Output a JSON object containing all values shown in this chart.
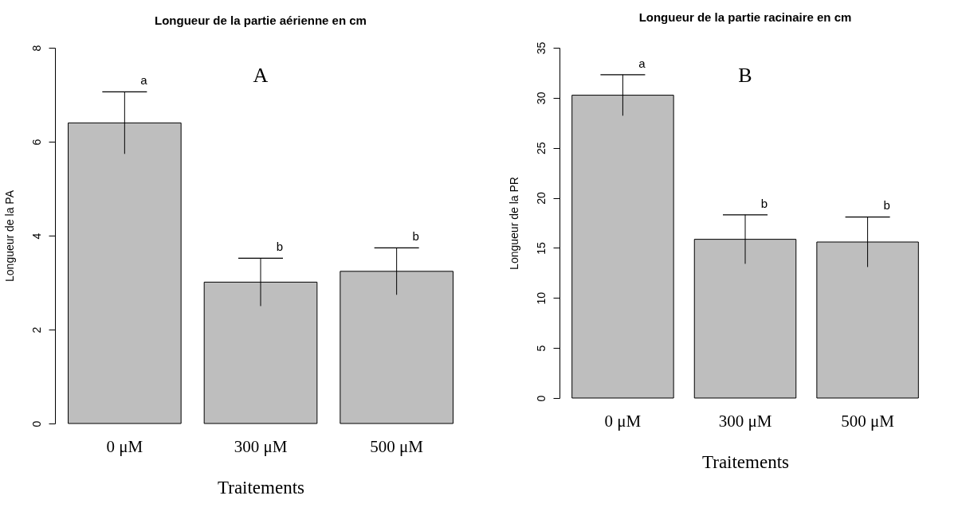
{
  "chart_data": [
    {
      "type": "bar",
      "title": "Longueur de la partie aérienne en cm",
      "xlabel": "Traitements",
      "ylabel": "Longueur de la PA",
      "categories": [
        "0 μM",
        "300 μM",
        "500 μM"
      ],
      "values": [
        6.4,
        3.01,
        3.24
      ],
      "errors": [
        0.66,
        0.51,
        0.5
      ],
      "color": "#bebebe",
      "ylim": [
        0,
        8
      ],
      "yticks": [
        0,
        2,
        4,
        6,
        8
      ],
      "grid": false,
      "annotations": [
        "A",
        {
          "text": "a",
          "x": "0 μM",
          "y": 7.07
        },
        {
          "text": "b",
          "x": "300 μM",
          "y": 3.52
        },
        {
          "text": "b",
          "x": "500 μM",
          "y": 3.74
        }
      ]
    },
    {
      "type": "bar",
      "title": "Longueur de la partie racinaire en cm",
      "xlabel": "Traitements",
      "ylabel": "Longueur de la PR",
      "categories": [
        "0 μM",
        "300 μM",
        "500 μM"
      ],
      "values": [
        30.26,
        15.86,
        15.59
      ],
      "errors": [
        2.05,
        2.45,
        2.5
      ],
      "color": "#bebebe",
      "ylim": [
        0,
        35
      ],
      "yticks": [
        0,
        5,
        10,
        15,
        20,
        25,
        30,
        35
      ],
      "grid": false,
      "annotations": [
        "B",
        {
          "text": "a",
          "x": "0 μM",
          "y": 32.29
        },
        {
          "text": "b",
          "x": "300 μM",
          "y": 18.28
        },
        {
          "text": "b",
          "x": "500 μM",
          "y": 18.1
        }
      ]
    }
  ]
}
